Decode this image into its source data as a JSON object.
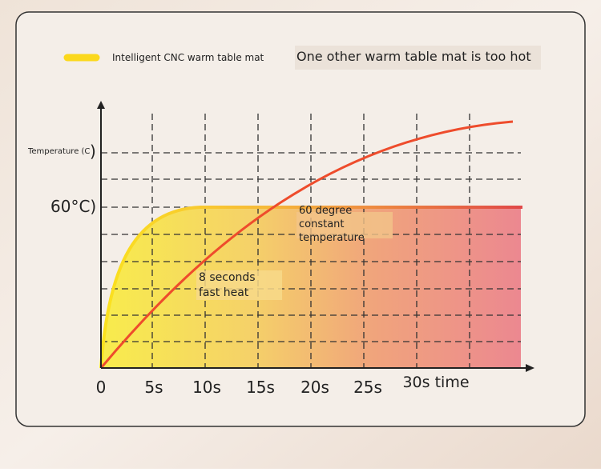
{
  "legend": {
    "ours": "Intelligent CNC warm table mat",
    "other": "One other warm table mat is too hot"
  },
  "axis": {
    "y_label": "Temperature (C",
    "y_label_paren": ")",
    "y_mark": "60°C)",
    "x_labels": [
      "0",
      "5s",
      "10s",
      "15s",
      "20s",
      "25s",
      "30s time"
    ]
  },
  "annotations": {
    "constant": [
      "60 degree",
      "constant",
      "temperature"
    ],
    "fast": [
      "8 seconds",
      "fast heat"
    ]
  }
}
